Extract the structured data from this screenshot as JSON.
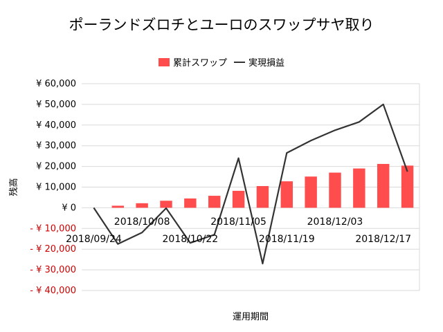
{
  "chart_data": {
    "type": "bar",
    "title": "ポーランドズロチとユーロのスワップサヤ取り",
    "xlabel": "運用期間",
    "ylabel": "残高",
    "ylim": [
      -40000,
      60000
    ],
    "y_ticks": [
      60000,
      50000,
      40000,
      30000,
      20000,
      10000,
      0,
      -10000,
      -20000,
      -30000,
      -40000
    ],
    "y_tick_labels": [
      "¥ 60,000",
      "¥ 50,000",
      "¥ 40,000",
      "¥ 30,000",
      "¥ 20,000",
      "¥ 10,000",
      "¥ 0",
      "- ¥ 10,000",
      "- ¥ 20,000",
      "- ¥ 30,000",
      "- ¥ 40,000"
    ],
    "negative_tick_color": "#cc0000",
    "x_tick_labels": [
      {
        "label": "2018/09/24",
        "index": 0,
        "row": 2
      },
      {
        "label": "2018/10/08",
        "index": 2,
        "row": 1
      },
      {
        "label": "2018/10/22",
        "index": 4,
        "row": 2
      },
      {
        "label": "2018/11/05",
        "index": 6,
        "row": 1
      },
      {
        "label": "2018/11/19",
        "index": 8,
        "row": 2
      },
      {
        "label": "2018/12/03",
        "index": 10,
        "row": 1
      },
      {
        "label": "2018/12/17",
        "index": 12,
        "row": 2
      }
    ],
    "grid": true,
    "legend_position": "top",
    "series": [
      {
        "name": "累計スワップ",
        "type": "bar",
        "color": "#ff4d4d",
        "values": [
          0,
          1000,
          2200,
          3400,
          4500,
          5800,
          8200,
          10500,
          12800,
          15100,
          17000,
          19000,
          21200,
          20400
        ]
      },
      {
        "name": "実現損益",
        "type": "line",
        "color": "#333333",
        "values": [
          0,
          -17500,
          -12000,
          -200,
          -17000,
          -13000,
          24000,
          -27000,
          26500,
          32500,
          37500,
          41500,
          50000,
          17500
        ]
      }
    ]
  }
}
